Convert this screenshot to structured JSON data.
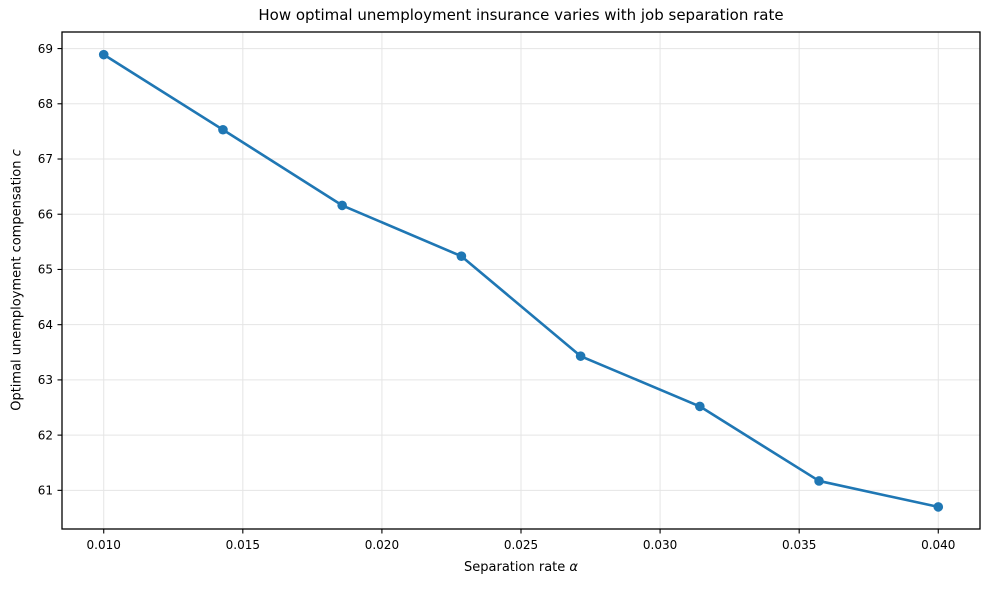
{
  "chart_data": {
    "type": "line",
    "title": "How optimal unemployment insurance varies with job separation rate",
    "xlabel_main": "Separation rate ",
    "xlabel_var": "α",
    "ylabel_main": "Optimal unemployment compensation ",
    "ylabel_var": "c",
    "x": [
      0.01,
      0.014286,
      0.018571,
      0.022857,
      0.027143,
      0.031429,
      0.035714,
      0.04
    ],
    "y": [
      68.89,
      67.53,
      66.16,
      65.24,
      63.43,
      62.52,
      61.17,
      60.7
    ],
    "x_tick_values": [
      0.01,
      0.015,
      0.02,
      0.025,
      0.03,
      0.035,
      0.04
    ],
    "x_tick_labels": [
      "0.010",
      "0.015",
      "0.020",
      "0.025",
      "0.030",
      "0.035",
      "0.040"
    ],
    "y_tick_values": [
      61,
      62,
      63,
      64,
      65,
      66,
      67,
      68,
      69
    ],
    "y_tick_labels": [
      "61",
      "62",
      "63",
      "64",
      "65",
      "66",
      "67",
      "68",
      "69"
    ],
    "xlim": [
      0.0085,
      0.0415
    ],
    "ylim": [
      60.3,
      69.3
    ],
    "grid": true,
    "legend": "none",
    "line_color": "#1f77b4",
    "marker_color": "#1f77b4",
    "grid_color": "#e5e5e5",
    "spine_color": "#000000",
    "background_color": "#ffffff"
  }
}
